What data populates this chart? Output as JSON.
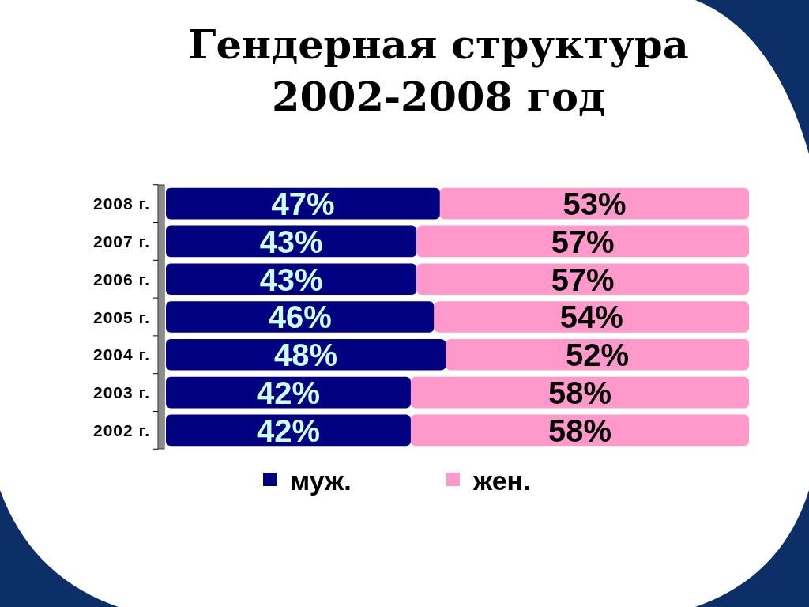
{
  "chart_data": {
    "type": "bar",
    "title": "Гендерная структура\n2002-2008 год",
    "orientation": "horizontal",
    "stacked": true,
    "categories": [
      "2008 г.",
      "2007 г.",
      "2006 г.",
      "2005 г.",
      "2004 г.",
      "2003 г.",
      "2002 г."
    ],
    "series": [
      {
        "name": "муж.",
        "color": "#000080",
        "values": [
          47,
          43,
          43,
          46,
          48,
          42,
          42
        ],
        "value_labels": [
          "47%",
          "43%",
          "43%",
          "46%",
          "48%",
          "42%",
          "42%"
        ]
      },
      {
        "name": "жен.",
        "color": "#ff99cc",
        "values": [
          53,
          57,
          57,
          54,
          52,
          58,
          58
        ],
        "value_labels": [
          "53%",
          "57%",
          "57%",
          "54%",
          "52%",
          "58%",
          "58%"
        ]
      }
    ],
    "xlim": [
      0,
      100
    ],
    "tick_labels": "y",
    "legend": "bottom"
  }
}
